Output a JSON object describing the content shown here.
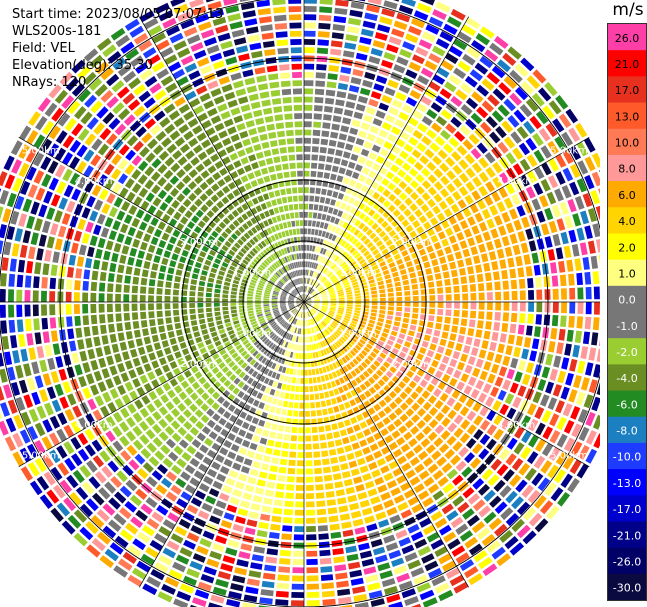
{
  "header": {
    "start_time": "Start time: 2023/08/05 07:07:13",
    "radar": "WLS200s-181",
    "field": "Field: VEL",
    "elevation": "Elevation(deg): 35.30",
    "nrays": "NRays: 120"
  },
  "colorbar": {
    "unit": "m/s",
    "ticks": [
      "26.0",
      "21.0",
      "17.0",
      "13.0",
      "10.0",
      "8.0",
      "6.0",
      "4.0",
      "2.0",
      "1.0",
      "0.0",
      "-1.0",
      "-2.0",
      "-4.0",
      "-6.0",
      "-8.0",
      "-10.0",
      "-13.0",
      "-17.0",
      "-21.0",
      "-26.0",
      "-30.0"
    ],
    "colors": [
      "#ff3fa8",
      "#ff0000",
      "#e8301e",
      "#ff5a2a",
      "#ff7a55",
      "#ff9999",
      "#ffaa00",
      "#ffd400",
      "#ffff00",
      "#ffff80",
      "#777777",
      "#777777",
      "#9acd32",
      "#6b8e23",
      "#228b22",
      "#1b7fc2",
      "#1e3cff",
      "#0000ff",
      "#0000cc",
      "#000088",
      "#000066",
      "#0a0a40"
    ],
    "dark_text_from": 10
  },
  "chart_data": {
    "type": "ppi",
    "field": "VEL",
    "units": "m/s",
    "nrays": 120,
    "elevation_deg": 35.3,
    "max_range_km": 6.0,
    "range_rings_km": [
      1.0,
      2.0,
      4.0,
      5.0
    ],
    "range_labels": {
      "1.00km": "1.00km",
      "2.00km": "2.00km",
      "4.00km": "4.00km",
      "5.00km": "5.00km"
    },
    "radial_spokes_deg": [
      0,
      30,
      60,
      90,
      120,
      150,
      180,
      210,
      240,
      270,
      300,
      330
    ],
    "velocity_pattern": {
      "toward_sector_deg": [
        200,
        300
      ],
      "away_sector_deg": [
        20,
        130
      ],
      "peak_velocity_ms": 6.0,
      "noisy_beyond_km": 3.6
    }
  }
}
